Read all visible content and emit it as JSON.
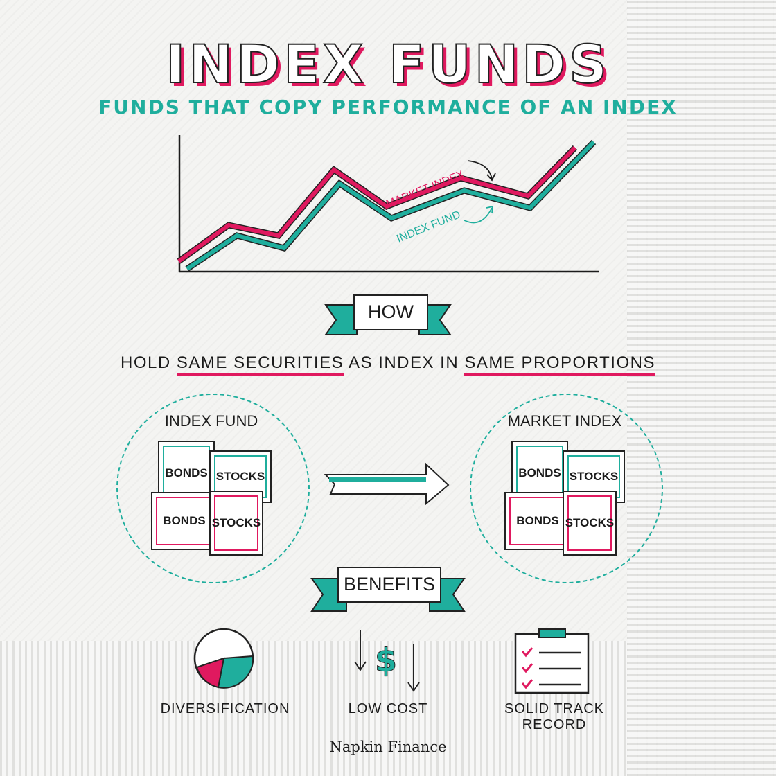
{
  "title": "INDEX FUNDS",
  "subtitle": "FUNDS THAT COPY PERFORMANCE OF AN INDEX",
  "chart": {
    "market_label": "MARKET INDEX",
    "fund_label": "INDEX FUND"
  },
  "how": {
    "banner": "HOW",
    "text_parts": [
      "HOLD ",
      "SAME SECURITIES",
      " AS INDEX IN ",
      "SAME PROPORTIONS"
    ]
  },
  "left_group": {
    "label": "INDEX FUND",
    "items": [
      "BONDS",
      "STOCKS",
      "BONDS",
      "STOCKS"
    ]
  },
  "right_group": {
    "label": "MARKET INDEX",
    "items": [
      "BONDS",
      "STOCKS",
      "BONDS",
      "STOCKS"
    ]
  },
  "benefits": {
    "banner": "BENEFITS",
    "items": [
      {
        "label": "DIVERSIFICATION",
        "icon": "pie-icon"
      },
      {
        "label": "LOW COST",
        "icon": "dollar-down-icon"
      },
      {
        "label": "SOLID TRACK RECORD",
        "icon": "clipboard-checklist-icon"
      }
    ]
  },
  "brand": "Napkin Finance",
  "colors": {
    "teal": "#1fae9d",
    "pink": "#e0195f",
    "ink": "#1b1b1b"
  }
}
